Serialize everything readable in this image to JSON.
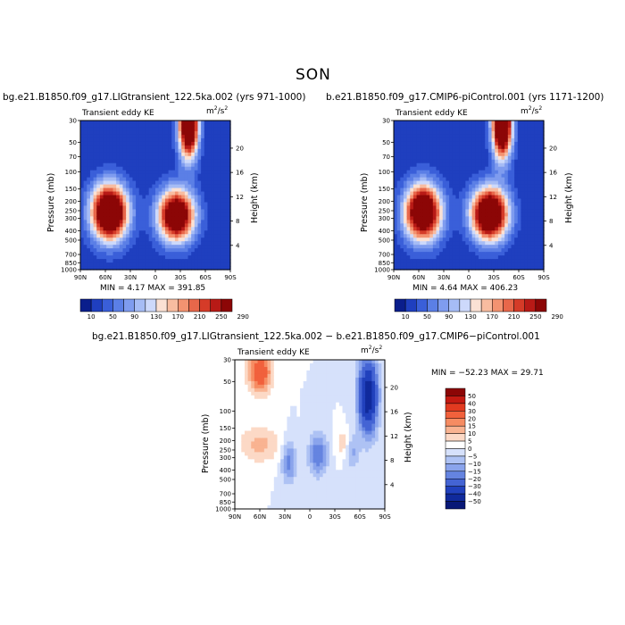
{
  "figure": {
    "season": "SON"
  },
  "chart_data": [
    {
      "type": "heatmap",
      "title": "bg.e21.B1850.f09_g17.LIGtransient_122.5ka.002 (yrs 971-1000)",
      "subtitle": "Transient eddy KE",
      "units_base": "m",
      "units_exp": "2",
      "units_den": "/s",
      "ylabel": "Pressure (mb)",
      "y2label": "Height (km)",
      "x_ticks": [
        "90N",
        "60N",
        "30N",
        "0",
        "30S",
        "60S",
        "90S"
      ],
      "y_ticks": [
        "30",
        "50",
        "70",
        "100",
        "150",
        "200",
        "250",
        "300",
        "400",
        "500",
        "700",
        "850",
        "1000"
      ],
      "y_ticks_values": [
        30,
        50,
        70,
        100,
        150,
        200,
        250,
        300,
        400,
        500,
        700,
        850,
        1000
      ],
      "y2_ticks": [
        "20",
        "16",
        "12",
        "8",
        "4"
      ],
      "stats": "MIN =    4.17   MAX = 391.85",
      "min": 4.17,
      "max": 391.85,
      "colorbar_labels": [
        "10",
        "50",
        "90",
        "130",
        "170",
        "210",
        "250",
        "290"
      ],
      "colorbar_colors": [
        "#0a1e8c",
        "#1f3fbf",
        "#3a5fd9",
        "#5b7fe6",
        "#7f9cef",
        "#a6bcf5",
        "#cdd9fb",
        "#fbe1d4",
        "#f8bca0",
        "#f39371",
        "#e8674a",
        "#d53b28",
        "#b81a16",
        "#8c0606"
      ],
      "features": [
        {
          "x": 55,
          "p": 260,
          "amp": 380,
          "sx": 15,
          "sp": 0.45
        },
        {
          "x": -25,
          "p": 280,
          "amp": 340,
          "sx": 15,
          "sp": 0.42
        },
        {
          "x": -40,
          "p": 32,
          "amp": 392,
          "sx": 8,
          "sp": 0.55
        }
      ],
      "x_range": [
        90,
        -90
      ],
      "y_range": [
        1000,
        30
      ]
    },
    {
      "type": "heatmap",
      "title": "b.e21.B1850.f09_g17.CMIP6-piControl.001 (yrs 1171-1200)",
      "subtitle": "Transient eddy KE",
      "units_base": "m",
      "units_exp": "2",
      "units_den": "/s",
      "ylabel": "Pressure (mb)",
      "y2label": "Height (km)",
      "x_ticks": [
        "90N",
        "60N",
        "30N",
        "0",
        "30S",
        "60S",
        "90S"
      ],
      "y_ticks": [
        "30",
        "50",
        "70",
        "100",
        "150",
        "200",
        "250",
        "300",
        "400",
        "500",
        "700",
        "850",
        "1000"
      ],
      "y_ticks_values": [
        30,
        50,
        70,
        100,
        150,
        200,
        250,
        300,
        400,
        500,
        700,
        850,
        1000
      ],
      "y2_ticks": [
        "20",
        "16",
        "12",
        "8",
        "4"
      ],
      "stats": "MIN =    4.64   MAX = 406.23",
      "min": 4.64,
      "max": 406.23,
      "colorbar_labels": [
        "10",
        "50",
        "90",
        "130",
        "170",
        "210",
        "250",
        "290"
      ],
      "colorbar_colors": [
        "#0a1e8c",
        "#1f3fbf",
        "#3a5fd9",
        "#5b7fe6",
        "#7f9cef",
        "#a6bcf5",
        "#cdd9fb",
        "#fbe1d4",
        "#f8bca0",
        "#f39371",
        "#e8674a",
        "#d53b28",
        "#b81a16",
        "#8c0606"
      ],
      "features": [
        {
          "x": 55,
          "p": 260,
          "amp": 360,
          "sx": 15,
          "sp": 0.45
        },
        {
          "x": -25,
          "p": 270,
          "amp": 380,
          "sx": 15,
          "sp": 0.42
        },
        {
          "x": -40,
          "p": 32,
          "amp": 406,
          "sx": 8,
          "sp": 0.55
        }
      ],
      "x_range": [
        90,
        -90
      ],
      "y_range": [
        1000,
        30
      ]
    },
    {
      "type": "heatmap",
      "title": "bg.e21.B1850.f09_g17.LIGtransient_122.5ka.002 − b.e21.B1850.f09_g17.CMIP6−piControl.001",
      "subtitle": "Transient eddy KE",
      "units_base": "m",
      "units_exp": "2",
      "units_den": "/s",
      "ylabel": "Pressure (mb)",
      "y2label": "Height (km)",
      "x_ticks": [
        "90N",
        "60N",
        "30N",
        "0",
        "30S",
        "60S",
        "90S"
      ],
      "y_ticks": [
        "30",
        "50",
        "100",
        "150",
        "200",
        "250",
        "300",
        "400",
        "500",
        "700",
        "850",
        "1000"
      ],
      "y_ticks_values": [
        30,
        50,
        100,
        150,
        200,
        250,
        300,
        400,
        500,
        700,
        850,
        1000
      ],
      "y2_ticks": [
        "20",
        "16",
        "12",
        "8",
        "4"
      ],
      "stats": "MIN = −52.23   MAX =  29.71",
      "min": -52.23,
      "max": 29.71,
      "colorbar_labels": [
        "50",
        "40",
        "30",
        "20",
        "15",
        "10",
        "5",
        "0",
        "−5",
        "−10",
        "−15",
        "−20",
        "−30",
        "−40",
        "−50"
      ],
      "colorbar_colors": [
        "#8c0606",
        "#c41a12",
        "#e23a20",
        "#f1613c",
        "#f68c62",
        "#f9b391",
        "#fcd9c6",
        "#ffffff",
        "#d6e1fb",
        "#aec2f4",
        "#8aa4ec",
        "#6584e0",
        "#4464d4",
        "#2141bd",
        "#102a9c",
        "#081877"
      ],
      "features": [
        {
          "x": 60,
          "p": 40,
          "amp": 28,
          "sx": 10,
          "sp": 0.35
        },
        {
          "x": -70,
          "p": 70,
          "amp": -50,
          "sx": 8,
          "sp": 0.6
        },
        {
          "x": 60,
          "p": 220,
          "amp": 12,
          "sx": 18,
          "sp": 0.3
        },
        {
          "x": -40,
          "p": 220,
          "amp": 10,
          "sx": 6,
          "sp": 0.25
        },
        {
          "x": -10,
          "p": 280,
          "amp": -20,
          "sx": 8,
          "sp": 0.35
        },
        {
          "x": 25,
          "p": 330,
          "amp": -18,
          "sx": 6,
          "sp": 0.35
        },
        {
          "x": -50,
          "p": 260,
          "amp": -12,
          "sx": 6,
          "sp": 0.3
        }
      ],
      "x_range": [
        90,
        -90
      ],
      "y_range": [
        1000,
        30
      ]
    }
  ]
}
